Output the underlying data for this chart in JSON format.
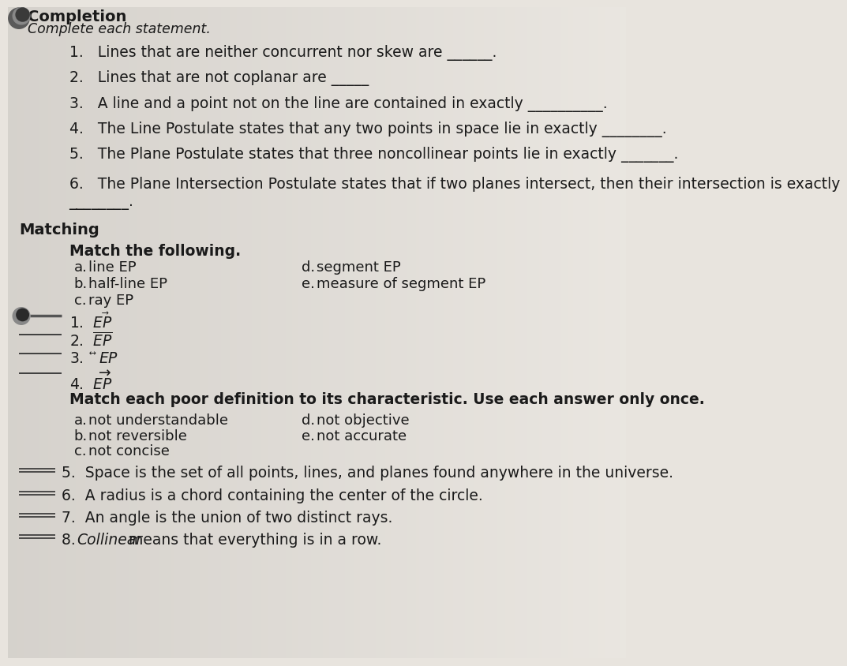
{
  "bg_color": "#e8e4de",
  "text_color": "#1a1a1a",
  "line_color": "#333333",
  "title": "Completion",
  "subtitle": "Complete each statement.",
  "completion_items": [
    "1.   Lines that are neither concurrent nor skew are ______.",
    "2.   Lines that are not coplanar are _____",
    "3.   A line and a point not on the line are contained in exactly __________.",
    "4.   The Line Postulate states that any two points in space lie in exactly ________.",
    "5.   The Plane Postulate states that three noncollinear points lie in exactly _______.",
    "6.   The Plane Intersection Postulate states that if two planes intersect, then their intersection is exactly"
  ],
  "completion_6_blank": "________.",
  "matching_title": "Matching",
  "match1_title": "Match the following.",
  "match1_left": [
    [
      "a.",
      "line ",
      "EP",
      false
    ],
    [
      "b.",
      "half-line ",
      "EP",
      false
    ],
    [
      "c.",
      "ray ",
      "EP",
      false
    ]
  ],
  "match1_right": [
    [
      "d.",
      "segment ",
      "EP",
      false
    ],
    [
      "e.",
      "measure of segment ",
      "EP",
      false
    ]
  ],
  "match1_items_num": [
    "1.",
    "2.",
    "3.",
    "4."
  ],
  "match2_title": "Match each poor definition to its characteristic. Use each answer only once.",
  "match2_left": [
    [
      "a.",
      "not understandable"
    ],
    [
      "b.",
      "not reversible"
    ],
    [
      "c.",
      "not concise"
    ]
  ],
  "match2_right": [
    [
      "d.",
      "not objective"
    ],
    [
      "e.",
      "not accurate"
    ]
  ],
  "match2_items": [
    "5.  Space is the set of all points, lines, and planes found anywhere in the universe.",
    "6.  A radius is a chord containing the center of the circle.",
    "7.  An angle is the union of two distinct rays.",
    "8.  Collinear means that everything is in a row."
  ],
  "match2_item8_italic": true
}
